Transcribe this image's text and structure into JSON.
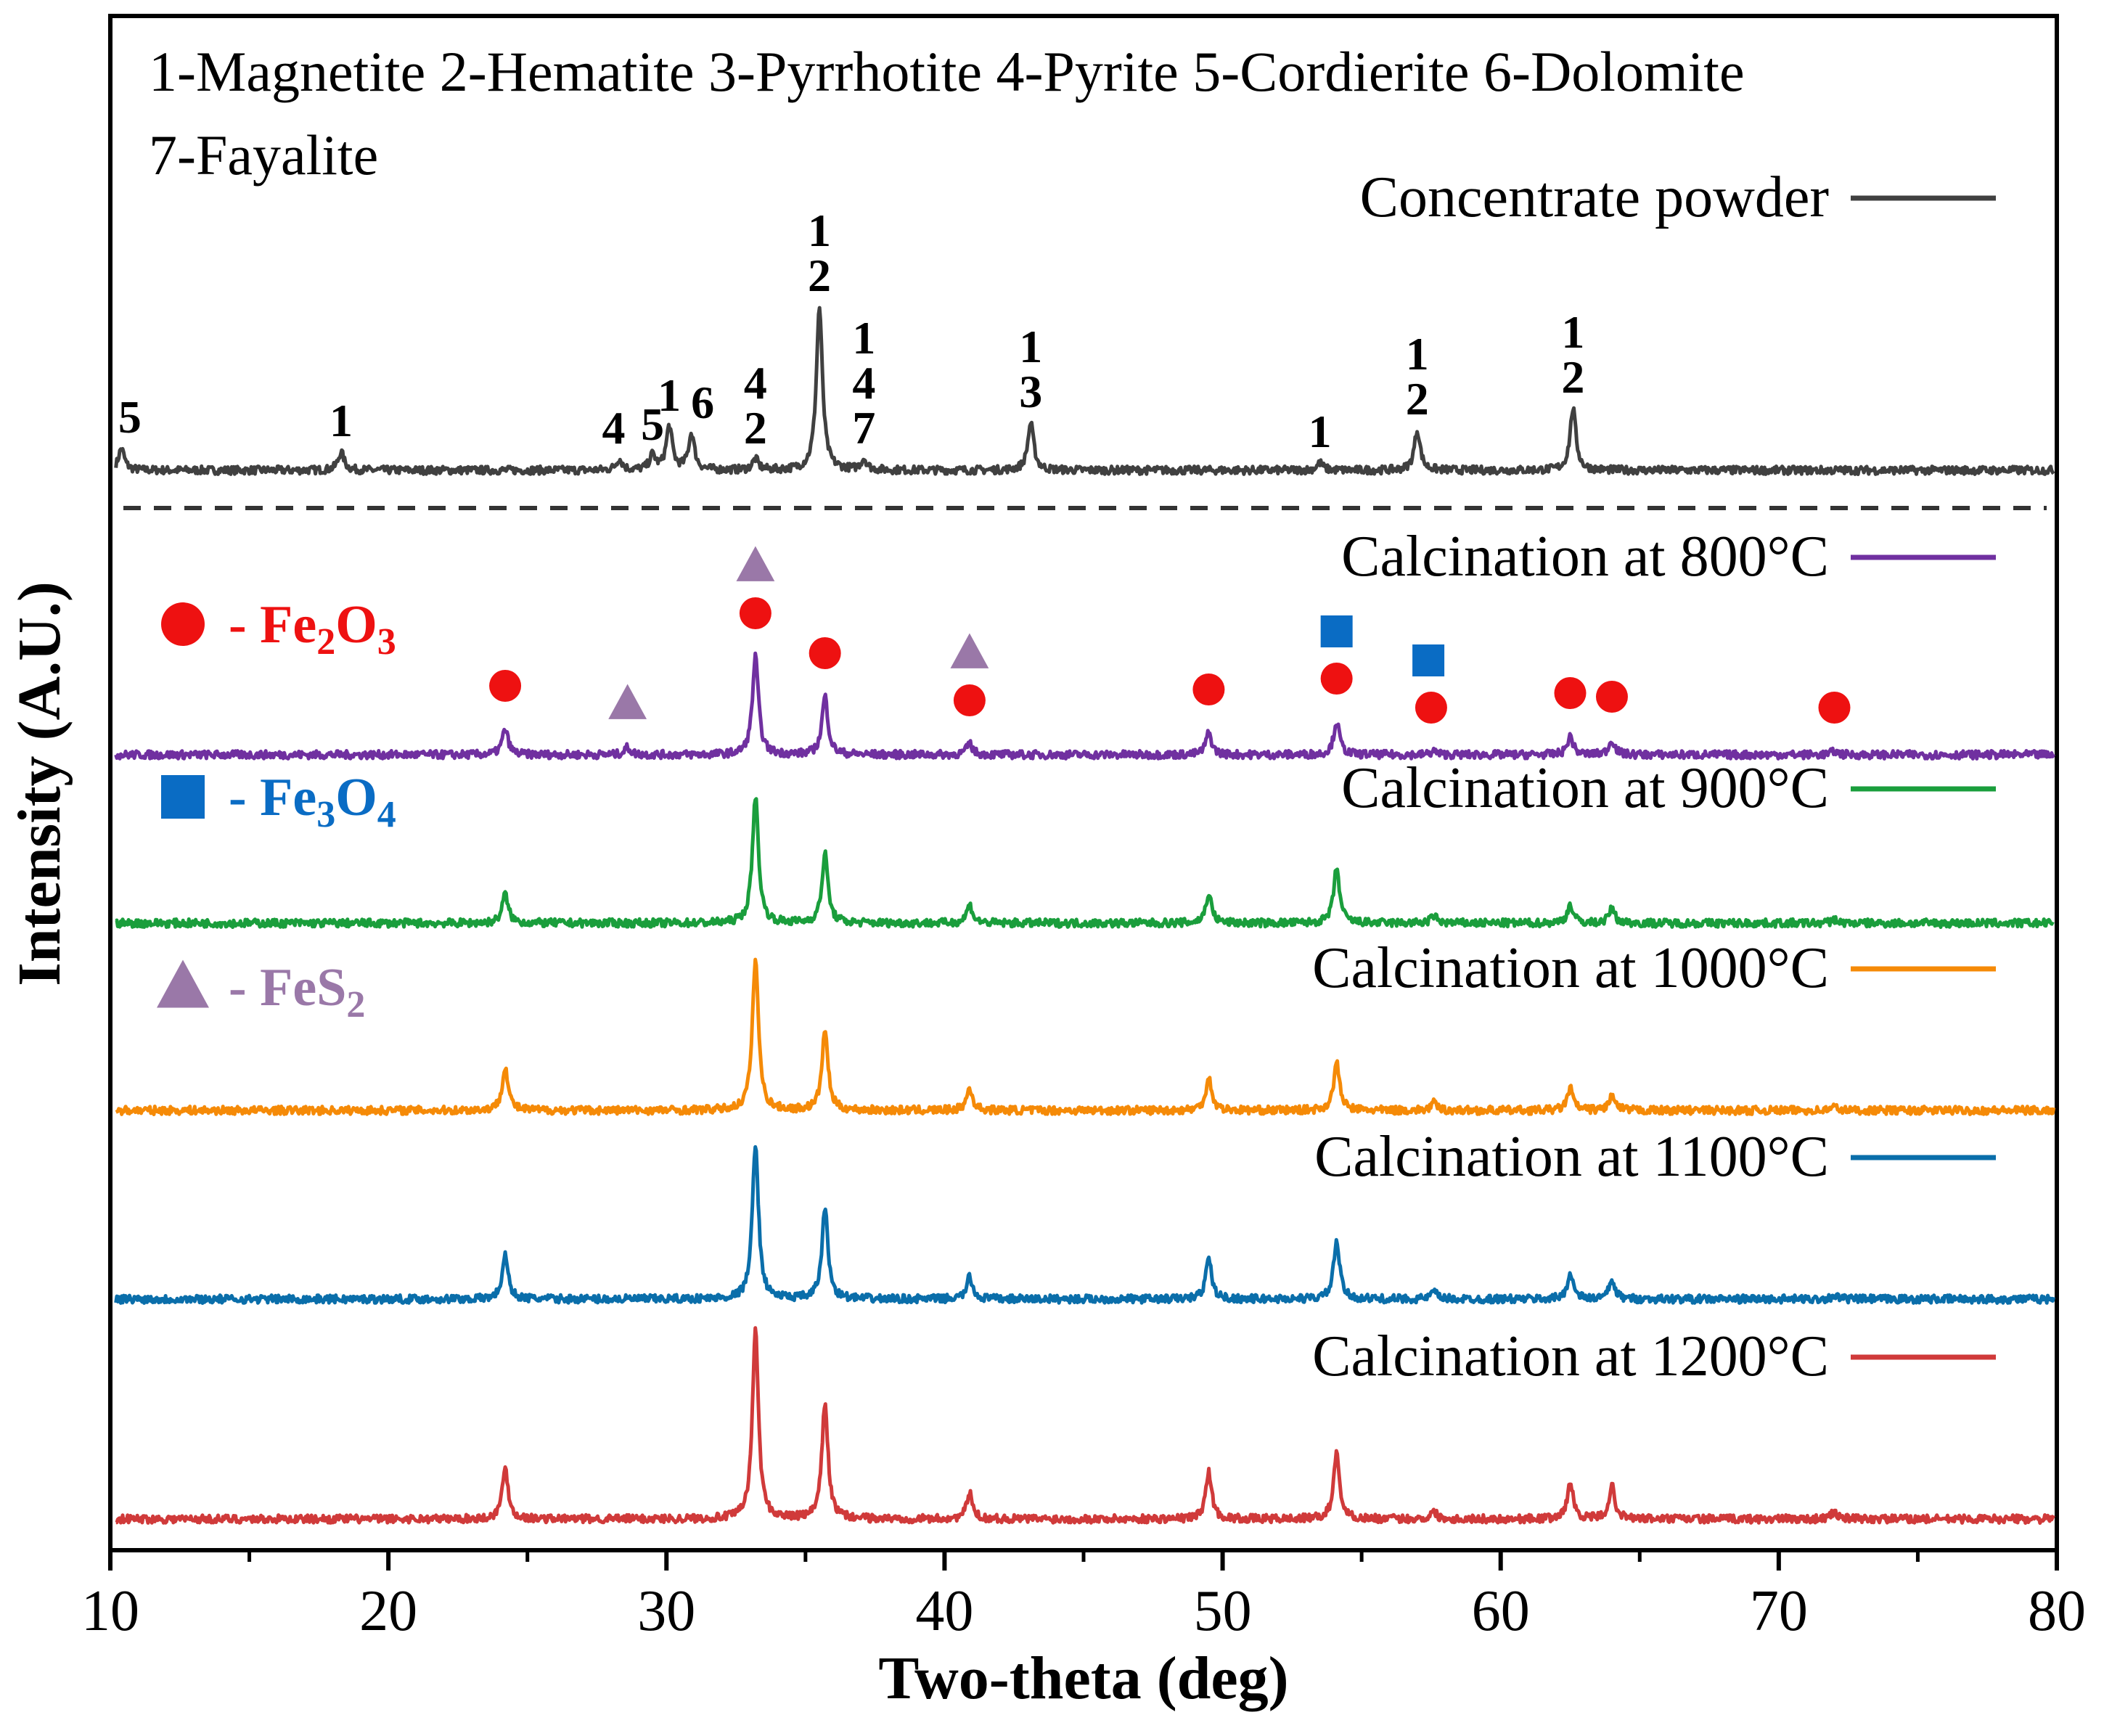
{
  "chart_data": {
    "type": "line",
    "subtype": "stacked-xrd-patterns",
    "xlabel": "Two-theta (deg)",
    "ylabel": "Intensity (A.U.)",
    "xlim": [
      10,
      80
    ],
    "xticks": [
      "10",
      "20",
      "30",
      "40",
      "50",
      "60",
      "70",
      "80"
    ],
    "phase_key_line1": "1-Magnetite 2-Hematite 3-Pyrrhotite 4-Pyrite  5-Cordierite 6-Dolomite",
    "phase_key_line2": "7-Fayalite",
    "series": [
      {
        "name": "Concentrate powder",
        "color": "#404040",
        "peaks": [
          [
            10.4,
            0.06
          ],
          [
            18.3,
            0.05
          ],
          [
            28.3,
            0.03
          ],
          [
            29.5,
            0.04
          ],
          [
            30.1,
            0.12
          ],
          [
            30.9,
            0.1
          ],
          [
            33.2,
            0.03
          ],
          [
            35.5,
            0.45
          ],
          [
            37.1,
            0.03
          ],
          [
            43.1,
            0.13
          ],
          [
            53.5,
            0.02
          ],
          [
            57.0,
            0.11
          ],
          [
            62.6,
            0.17
          ]
        ]
      },
      {
        "name": "Calcination at 800°C",
        "color": "#7030a0",
        "peaks": [
          [
            24.2,
            0.07
          ],
          [
            28.6,
            0.02
          ],
          [
            33.2,
            0.27
          ],
          [
            35.7,
            0.16
          ],
          [
            40.9,
            0.03
          ],
          [
            49.5,
            0.06
          ],
          [
            54.1,
            0.09
          ],
          [
            57.6,
            0.01
          ],
          [
            62.5,
            0.05
          ],
          [
            64.0,
            0.04
          ],
          [
            72.0,
            0.01
          ]
        ]
      },
      {
        "name": "Calcination at 900°C",
        "color": "#1a9e3c",
        "peaks": [
          [
            24.2,
            0.08
          ],
          [
            33.2,
            0.35
          ],
          [
            35.7,
            0.19
          ],
          [
            40.9,
            0.05
          ],
          [
            49.5,
            0.08
          ],
          [
            54.1,
            0.15
          ],
          [
            57.6,
            0.02
          ],
          [
            62.5,
            0.05
          ],
          [
            64.0,
            0.04
          ],
          [
            72.0,
            0.01
          ]
        ]
      },
      {
        "name": "Calcination at 1000°C",
        "color": "#f58a07",
        "peaks": [
          [
            24.2,
            0.12
          ],
          [
            33.2,
            0.42
          ],
          [
            35.7,
            0.22
          ],
          [
            40.9,
            0.06
          ],
          [
            49.5,
            0.09
          ],
          [
            54.1,
            0.13
          ],
          [
            57.6,
            0.02
          ],
          [
            62.5,
            0.06
          ],
          [
            64.0,
            0.04
          ],
          [
            72.0,
            0.01
          ]
        ]
      },
      {
        "name": "Calcination at 1100°C",
        "color": "#0a6eaa",
        "peaks": [
          [
            24.2,
            0.12
          ],
          [
            33.2,
            0.43
          ],
          [
            35.7,
            0.25
          ],
          [
            40.9,
            0.06
          ],
          [
            49.5,
            0.11
          ],
          [
            54.1,
            0.16
          ],
          [
            57.6,
            0.02
          ],
          [
            62.5,
            0.07
          ],
          [
            64.0,
            0.05
          ],
          [
            72.0,
            0.01
          ]
        ]
      },
      {
        "name": "Calcination at 1200°C",
        "color": "#d03a3a",
        "peaks": [
          [
            24.2,
            0.14
          ],
          [
            33.2,
            0.52
          ],
          [
            35.7,
            0.32
          ],
          [
            40.9,
            0.07
          ],
          [
            49.5,
            0.13
          ],
          [
            54.1,
            0.18
          ],
          [
            57.6,
            0.02
          ],
          [
            62.5,
            0.1
          ],
          [
            64.0,
            0.09
          ],
          [
            72.0,
            0.02
          ]
        ]
      }
    ],
    "peak_labels": [
      {
        "x": 10.7,
        "lines": [
          "5"
        ]
      },
      {
        "x": 18.3,
        "lines": [
          "1"
        ]
      },
      {
        "x": 28.1,
        "lines": [
          "4"
        ]
      },
      {
        "x": 29.5,
        "lines": [
          "5"
        ]
      },
      {
        "x": 30.1,
        "lines": [
          "1"
        ]
      },
      {
        "x": 31.3,
        "lines": [
          "6"
        ]
      },
      {
        "x": 33.2,
        "lines": [
          "4",
          "2"
        ]
      },
      {
        "x": 35.5,
        "lines": [
          "1",
          "2"
        ]
      },
      {
        "x": 37.1,
        "lines": [
          "1",
          "4",
          "7"
        ]
      },
      {
        "x": 43.1,
        "lines": [
          "1",
          "3"
        ]
      },
      {
        "x": 53.5,
        "lines": [
          "1"
        ]
      },
      {
        "x": 57.0,
        "lines": [
          "1",
          "2"
        ]
      },
      {
        "x": 62.6,
        "lines": [
          "1",
          "2"
        ]
      }
    ],
    "markers_800": [
      {
        "x": 24.2,
        "symbol": "circle"
      },
      {
        "x": 28.6,
        "symbol": "triangle"
      },
      {
        "x": 33.2,
        "symbol": "circle"
      },
      {
        "x": 33.2,
        "symbol": "triangle"
      },
      {
        "x": 35.7,
        "symbol": "circle"
      },
      {
        "x": 40.9,
        "symbol": "circle"
      },
      {
        "x": 40.9,
        "symbol": "triangle"
      },
      {
        "x": 49.5,
        "symbol": "circle"
      },
      {
        "x": 54.1,
        "symbol": "circle"
      },
      {
        "x": 54.1,
        "symbol": "square"
      },
      {
        "x": 57.5,
        "symbol": "circle"
      },
      {
        "x": 57.4,
        "symbol": "square"
      },
      {
        "x": 62.5,
        "symbol": "circle"
      },
      {
        "x": 64.0,
        "symbol": "circle"
      },
      {
        "x": 72.0,
        "symbol": "circle"
      }
    ],
    "marker_legend": [
      {
        "symbol": "circle",
        "color": "#ee1111",
        "label": "- Fe",
        "sub1": "2",
        "mid": "O",
        "sub2": "3"
      },
      {
        "symbol": "square",
        "color": "#0a6cc4",
        "label": "- Fe",
        "sub1": "3",
        "mid": "O",
        "sub2": "4"
      },
      {
        "symbol": "triangle",
        "color": "#9a78a8",
        "label": "- FeS",
        "sub1": "2",
        "mid": "",
        "sub2": ""
      }
    ]
  }
}
